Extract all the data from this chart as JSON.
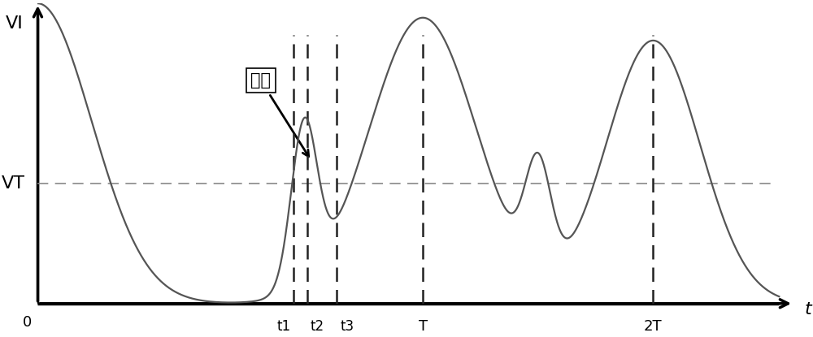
{
  "title": "",
  "xlabel": "t",
  "ylabel": "VI",
  "vt_label": "VT",
  "annotation_text": "回沟",
  "vt_level": 0.42,
  "t1": 0.355,
  "t2": 0.375,
  "t3": 0.415,
  "T": 0.535,
  "twoT": 0.855,
  "xlim": [
    0,
    1.05
  ],
  "ylim": [
    -0.05,
    1.05
  ],
  "background_color": "#ffffff",
  "signal_color": "#555555",
  "dashed_color": "#222222",
  "vt_line_color": "#888888",
  "fontsize_label": 16,
  "fontsize_tick": 12,
  "fontsize_annot": 15
}
